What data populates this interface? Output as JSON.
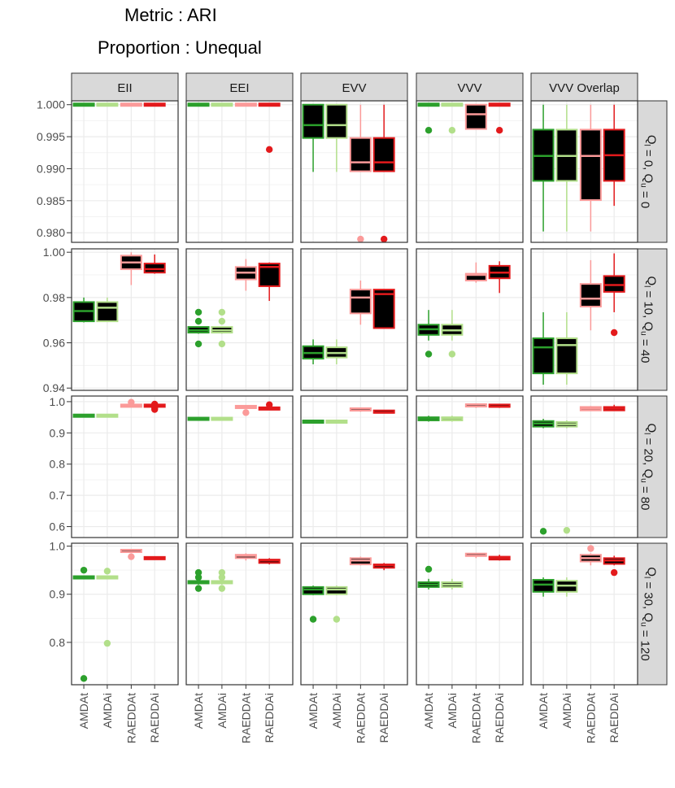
{
  "header": {
    "title_line1": "Metric : ARI",
    "title_line2": "Proportion : Unequal"
  },
  "colors": {
    "AMDAt": "#2ca02c",
    "AMDAi": "#b2df8a",
    "RAEDDAt": "#fb9a99",
    "RAEDDAi": "#e31a1c",
    "box_fill": "#000000",
    "strip_fill": "#d9d9d9",
    "panel_border": "#333333",
    "grid": "#ebebeb"
  },
  "chart_data": {
    "type": "boxplot",
    "columns": [
      "EII",
      "EEI",
      "EVV",
      "VVV",
      "VVV Overlap"
    ],
    "rows": [
      {
        "label": "Q_l = 0, Q_u = 0",
        "ylim": [
          0.9785,
          1.0006
        ],
        "yticks": [
          0.98,
          0.985,
          0.99,
          0.995,
          1.0
        ],
        "tick_labels": [
          "0.980",
          "0.985",
          "0.990",
          "0.995",
          "1.000"
        ]
      },
      {
        "label": "Q_l = 10, Q_u = 40",
        "ylim": [
          0.939,
          1.0015
        ],
        "yticks": [
          0.94,
          0.96,
          0.98,
          1.0
        ],
        "tick_labels": [
          "0.94",
          "0.96",
          "0.98",
          "1.00"
        ]
      },
      {
        "label": "Q_l = 20, Q_u = 80",
        "ylim": [
          0.565,
          1.018
        ],
        "yticks": [
          0.6,
          0.7,
          0.8,
          0.9,
          1.0
        ],
        "tick_labels": [
          "0.6",
          "0.7",
          "0.8",
          "0.9",
          "1.0"
        ]
      },
      {
        "label": "Q_l = 30, Q_u = 120",
        "ylim": [
          0.712,
          1.006
        ],
        "yticks": [
          0.8,
          0.9,
          1.0
        ],
        "tick_labels": [
          "0.8",
          "0.9",
          "1.0"
        ]
      }
    ],
    "row_strip_labels": [
      {
        "a": "Q",
        "sa": "l",
        "b": " = 0,  Q",
        "sb": "u",
        "c": " = 0"
      },
      {
        "a": "Q",
        "sa": "l",
        "b": " = 10,  Q",
        "sb": "u",
        "c": " = 40"
      },
      {
        "a": "Q",
        "sa": "l",
        "b": " = 20,  Q",
        "sb": "u",
        "c": " = 80"
      },
      {
        "a": "Q",
        "sa": "l",
        "b": " = 30,  Q",
        "sb": "u",
        "c": " = 120"
      }
    ],
    "methods": [
      "AMDAt",
      "AMDAi",
      "RAEDDAt",
      "RAEDDAi"
    ],
    "boxes": [
      [
        [
          [
            1.0,
            1.0,
            1.0,
            1.0,
            1.0,
            []
          ],
          [
            1.0,
            1.0,
            1.0,
            1.0,
            1.0,
            []
          ],
          [
            1.0,
            1.0,
            1.0,
            1.0,
            1.0,
            []
          ],
          [
            1.0,
            1.0,
            1.0,
            1.0,
            1.0,
            []
          ]
        ],
        [
          [
            1.0,
            1.0,
            1.0,
            1.0,
            1.0,
            []
          ],
          [
            1.0,
            1.0,
            1.0,
            1.0,
            1.0,
            []
          ],
          [
            1.0,
            1.0,
            1.0,
            1.0,
            1.0,
            []
          ],
          [
            1.0,
            1.0,
            1.0,
            1.0,
            1.0,
            [
              0.993
            ]
          ]
        ],
        [
          [
            0.9895,
            0.9948,
            0.9968,
            1.0,
            1.0,
            []
          ],
          [
            0.9895,
            0.9948,
            0.9968,
            1.0,
            1.0,
            []
          ],
          [
            0.9896,
            0.9896,
            0.991,
            0.9948,
            1.0,
            [
              0.979
            ]
          ],
          [
            0.9896,
            0.9896,
            0.991,
            0.9948,
            1.0,
            [
              0.979
            ]
          ]
        ],
        [
          [
            1.0,
            1.0,
            1.0,
            1.0,
            1.0,
            [
              0.996
            ]
          ],
          [
            1.0,
            1.0,
            1.0,
            1.0,
            1.0,
            [
              0.996
            ]
          ],
          [
            0.9962,
            0.9962,
            0.9985,
            1.0,
            1.0,
            []
          ],
          [
            1.0,
            1.0,
            1.0,
            1.0,
            1.0,
            [
              0.996
            ]
          ]
        ],
        [
          [
            0.9802,
            0.9881,
            0.992,
            0.9961,
            1.0,
            []
          ],
          [
            0.9802,
            0.9881,
            0.992,
            0.9961,
            1.0,
            []
          ],
          [
            0.9802,
            0.9851,
            0.992,
            0.9961,
            1.0,
            []
          ],
          [
            0.9842,
            0.9881,
            0.9921,
            0.9961,
            1.0,
            []
          ]
        ]
      ],
      [
        [
          [
            0.969,
            0.9695,
            0.974,
            0.978,
            0.98,
            []
          ],
          [
            0.9695,
            0.9695,
            0.9755,
            0.978,
            0.98,
            []
          ],
          [
            0.9855,
            0.9925,
            0.9955,
            0.9985,
            1.0,
            []
          ],
          [
            0.9905,
            0.991,
            0.9925,
            0.995,
            0.999,
            []
          ]
        ],
        [
          [
            0.964,
            0.9645,
            0.9655,
            0.967,
            0.967,
            [
              0.9595,
              0.9695,
              0.9735
            ]
          ],
          [
            0.964,
            0.9645,
            0.9655,
            0.967,
            0.967,
            [
              0.9595,
              0.9695,
              0.9735
            ]
          ],
          [
            0.983,
            0.988,
            0.991,
            0.9935,
            0.997,
            []
          ],
          [
            0.9785,
            0.985,
            0.9935,
            0.995,
            0.9955,
            []
          ]
        ],
        [
          [
            0.9505,
            0.953,
            0.9555,
            0.9585,
            0.9615,
            []
          ],
          [
            0.9505,
            0.9535,
            0.9555,
            0.958,
            0.9615,
            []
          ],
          [
            0.968,
            0.973,
            0.98,
            0.9835,
            0.9875,
            []
          ],
          [
            0.9665,
            0.9665,
            0.9815,
            0.9835,
            0.9835,
            []
          ]
        ],
        [
          [
            0.961,
            0.9635,
            0.966,
            0.968,
            0.9745,
            [
              0.955
            ]
          ],
          [
            0.961,
            0.9635,
            0.9655,
            0.968,
            0.9745,
            [
              0.955
            ]
          ],
          [
            0.9865,
            0.9875,
            0.99,
            0.9905,
            0.9955,
            []
          ],
          [
            0.982,
            0.9885,
            0.991,
            0.994,
            0.996,
            []
          ]
        ],
        [
          [
            0.9415,
            0.9465,
            0.958,
            0.962,
            0.9735,
            []
          ],
          [
            0.9415,
            0.9465,
            0.959,
            0.962,
            0.9735,
            []
          ],
          [
            0.9655,
            0.976,
            0.9795,
            0.986,
            0.9965,
            []
          ],
          [
            0.9735,
            0.9825,
            0.9855,
            0.9895,
            0.9995,
            [
              0.9645
            ]
          ]
        ]
      ],
      [
        [
          [
            0.955,
            0.955,
            0.955,
            0.955,
            0.955,
            []
          ],
          [
            0.955,
            0.955,
            0.955,
            0.955,
            0.955,
            []
          ],
          [
            0.987,
            0.987,
            0.987,
            0.987,
            0.987,
            [
              0.998
            ]
          ],
          [
            0.987,
            0.987,
            0.987,
            0.987,
            0.987,
            [
              0.975,
              0.98,
              0.99,
              0.992
            ]
          ]
        ],
        [
          [
            0.945,
            0.945,
            0.945,
            0.945,
            0.945,
            []
          ],
          [
            0.945,
            0.945,
            0.945,
            0.945,
            0.945,
            []
          ],
          [
            0.983,
            0.983,
            0.983,
            0.983,
            0.983,
            [
              0.965
            ]
          ],
          [
            0.978,
            0.978,
            0.978,
            0.978,
            0.978,
            [
              0.99
            ]
          ]
        ],
        [
          [
            0.936,
            0.936,
            0.936,
            0.936,
            0.936,
            []
          ],
          [
            0.936,
            0.936,
            0.936,
            0.936,
            0.936,
            []
          ],
          [
            0.967,
            0.968,
            0.972,
            0.975,
            0.978,
            []
          ],
          [
            0.963,
            0.964,
            0.965,
            0.968,
            0.969,
            []
          ]
        ],
        [
          [
            0.936,
            0.94,
            0.946,
            0.95,
            0.955,
            []
          ],
          [
            0.936,
            0.94,
            0.946,
            0.95,
            0.955,
            []
          ],
          [
            0.98,
            0.982,
            0.985,
            0.988,
            0.99,
            []
          ],
          [
            0.98,
            0.982,
            0.984,
            0.987,
            0.988,
            []
          ]
        ],
        [
          [
            0.915,
            0.92,
            0.93,
            0.938,
            0.945,
            [
              0.585
            ]
          ],
          [
            0.915,
            0.92,
            0.928,
            0.935,
            0.94,
            [
              0.588
            ]
          ],
          [
            0.97,
            0.972,
            0.978,
            0.983,
            0.986,
            []
          ],
          [
            0.97,
            0.972,
            0.978,
            0.983,
            0.99,
            []
          ]
        ]
      ],
      [
        [
          [
            0.935,
            0.935,
            0.935,
            0.935,
            0.935,
            [
              0.95,
              0.725
            ]
          ],
          [
            0.935,
            0.935,
            0.935,
            0.935,
            0.935,
            [
              0.948,
              0.798
            ]
          ],
          [
            0.985,
            0.985,
            0.988,
            0.99,
            0.992,
            [
              0.978
            ]
          ],
          [
            0.975,
            0.975,
            0.975,
            0.975,
            0.975,
            []
          ]
        ],
        [
          [
            0.92,
            0.922,
            0.925,
            0.925,
            0.925,
            [
              0.912,
              0.935,
              0.945
            ]
          ],
          [
            0.92,
            0.922,
            0.925,
            0.925,
            0.925,
            [
              0.912,
              0.935,
              0.945
            ]
          ],
          [
            0.97,
            0.975,
            0.98,
            0.982,
            0.985,
            []
          ],
          [
            0.962,
            0.965,
            0.97,
            0.972,
            0.975,
            []
          ]
        ],
        [
          [
            0.898,
            0.9,
            0.91,
            0.915,
            0.918,
            [
              0.848
            ]
          ],
          [
            0.898,
            0.9,
            0.91,
            0.915,
            0.918,
            [
              0.848
            ]
          ],
          [
            0.96,
            0.962,
            0.97,
            0.975,
            0.978,
            []
          ],
          [
            0.95,
            0.955,
            0.96,
            0.962,
            0.965,
            []
          ]
        ],
        [
          [
            0.91,
            0.915,
            0.92,
            0.925,
            0.932,
            [
              0.952
            ]
          ],
          [
            0.91,
            0.915,
            0.92,
            0.925,
            0.932,
            []
          ],
          [
            0.975,
            0.978,
            0.98,
            0.982,
            0.985,
            []
          ],
          [
            0.97,
            0.972,
            0.976,
            0.978,
            0.982,
            []
          ]
        ],
        [
          [
            0.895,
            0.905,
            0.92,
            0.93,
            0.935,
            []
          ],
          [
            0.895,
            0.905,
            0.918,
            0.928,
            0.935,
            []
          ],
          [
            0.96,
            0.968,
            0.975,
            0.982,
            0.985,
            [
              0.995
            ]
          ],
          [
            0.96,
            0.963,
            0.97,
            0.975,
            0.98,
            [
              0.945
            ]
          ]
        ]
      ]
    ]
  }
}
